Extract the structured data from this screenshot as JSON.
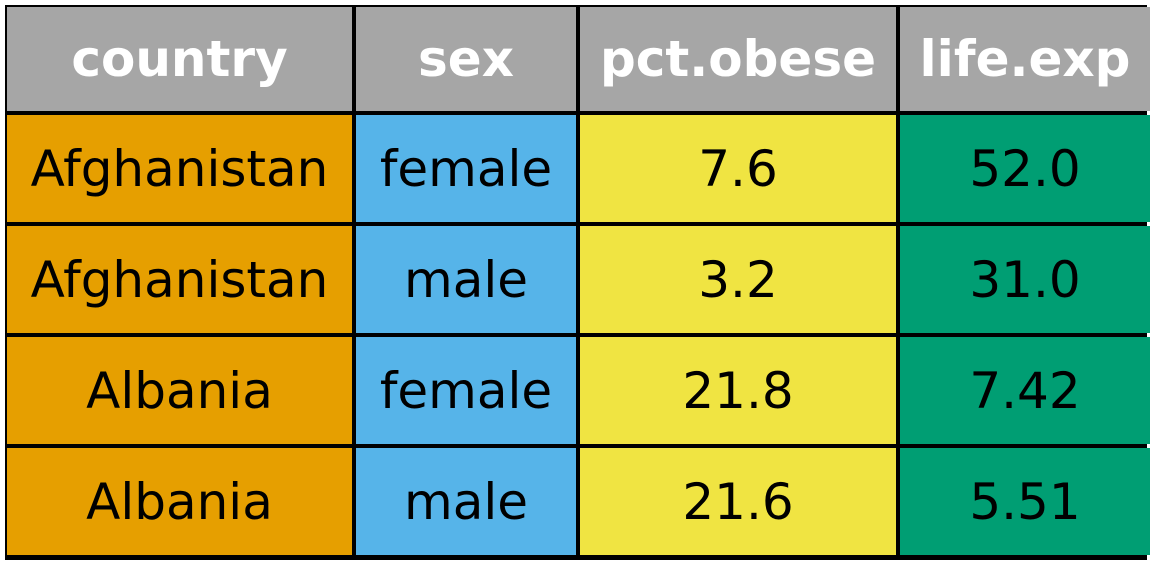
{
  "table": {
    "headers": [
      "country",
      "sex",
      "pct.obese",
      "life.exp"
    ],
    "rows": [
      [
        "Afghanistan",
        "female",
        "7.6",
        "52.0"
      ],
      [
        "Afghanistan",
        "male",
        "3.2",
        "31.0"
      ],
      [
        "Albania",
        "female",
        "21.8",
        "7.42"
      ],
      [
        "Albania",
        "male",
        "21.6",
        "5.51"
      ]
    ]
  },
  "colors": {
    "header": "#a6a6a6",
    "country": "#e69f00",
    "sex": "#56b4e9",
    "pct_obese": "#f0e442",
    "life_exp": "#009e73",
    "border": "#000000"
  }
}
